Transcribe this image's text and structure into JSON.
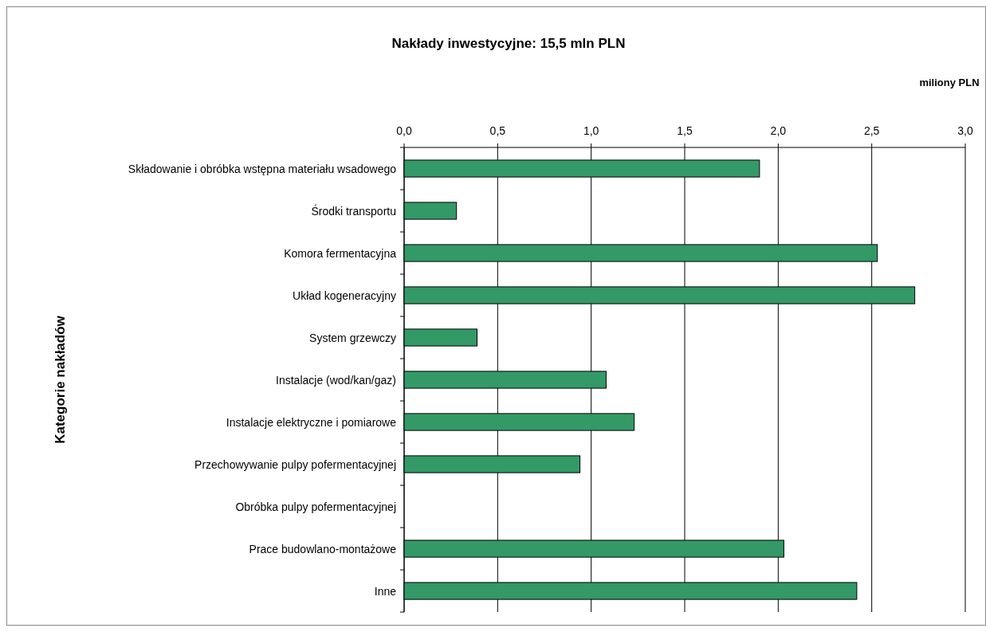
{
  "chart_data": {
    "type": "bar",
    "orientation": "horizontal",
    "title": "Nakłady inwestycyjne: 15,5 mln PLN",
    "xlabel": "miliony PLN",
    "ylabel": "Kategorie nakładów",
    "categories": [
      "Składowanie i obróbka wstępna materiału wsadowego",
      "Środki transportu",
      "Komora fermentacyjna",
      "Układ kogeneracyjny",
      "System grzewczy",
      "Instalacje (wod/kan/gaz)",
      "Instalacje elektryczne i pomiarowe",
      "Przechowywanie pulpy pofermentacyjnej",
      "Obróbka  pulpy pofermentacyjnej",
      "Prace budowlano-montażowe",
      "Inne"
    ],
    "values": [
      1.9,
      0.28,
      2.53,
      2.73,
      0.39,
      1.08,
      1.23,
      0.94,
      0,
      2.03,
      2.42
    ],
    "color": "#339966",
    "xlim": [
      0,
      3
    ],
    "xticks": [
      {
        "value": 0,
        "label": "0,0"
      },
      {
        "value": 0.5,
        "label": "0,5"
      },
      {
        "value": 1,
        "label": "1,0"
      },
      {
        "value": 1.5,
        "label": "1,5"
      },
      {
        "value": 2,
        "label": "2,0"
      },
      {
        "value": 2.5,
        "label": "2,5"
      },
      {
        "value": 3,
        "label": "3,0"
      }
    ],
    "grid": "x"
  }
}
